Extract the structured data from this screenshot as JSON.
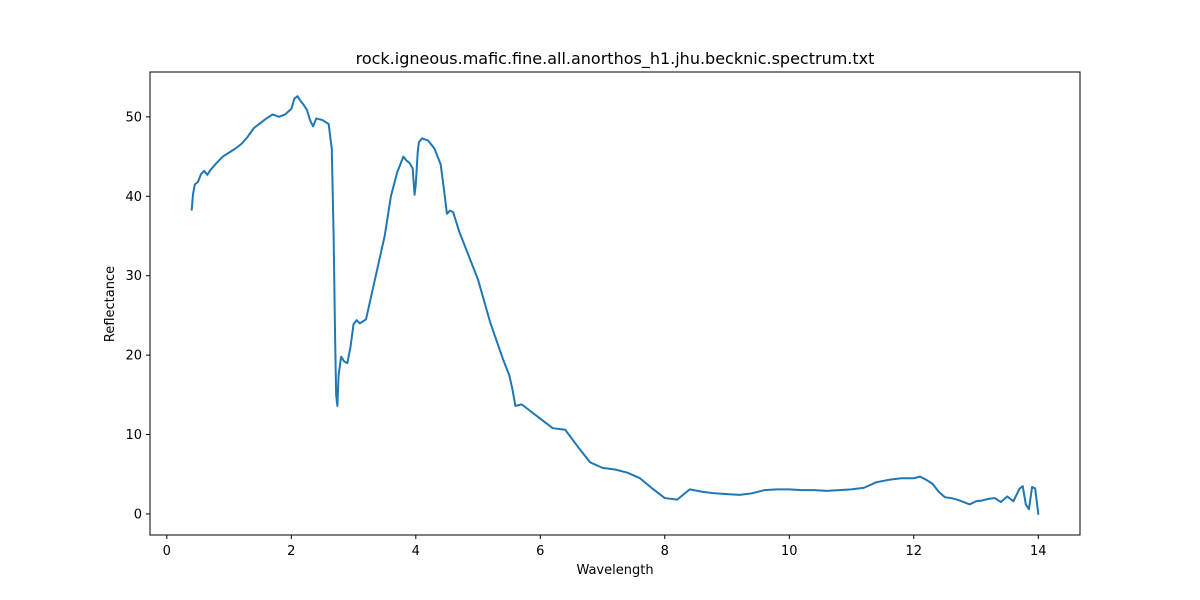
{
  "chart_data": {
    "type": "line",
    "title": "rock.igneous.mafic.fine.all.anorthos_h1.jhu.becknic.spectrum.txt",
    "xlabel": "Wavelength",
    "ylabel": "Reflectance",
    "xlim": [
      -0.27,
      14.67
    ],
    "ylim": [
      -2.65,
      55.65
    ],
    "xticks": [
      0,
      2,
      4,
      6,
      8,
      10,
      12,
      14
    ],
    "yticks": [
      0,
      10,
      20,
      30,
      40,
      50
    ],
    "grid": false,
    "legend": "none",
    "series": [
      {
        "color": "#1f77b4",
        "x": [
          0.4,
          0.42,
          0.45,
          0.5,
          0.55,
          0.6,
          0.65,
          0.7,
          0.8,
          0.9,
          1.0,
          1.1,
          1.2,
          1.3,
          1.4,
          1.5,
          1.6,
          1.7,
          1.8,
          1.9,
          2.0,
          2.05,
          2.1,
          2.15,
          2.2,
          2.25,
          2.3,
          2.35,
          2.4,
          2.5,
          2.6,
          2.65,
          2.68,
          2.7,
          2.72,
          2.74,
          2.76,
          2.8,
          2.85,
          2.9,
          2.95,
          3.0,
          3.05,
          3.1,
          3.2,
          3.3,
          3.4,
          3.5,
          3.6,
          3.7,
          3.8,
          3.85,
          3.9,
          3.95,
          3.98,
          4.0,
          4.03,
          4.05,
          4.1,
          4.2,
          4.3,
          4.4,
          4.45,
          4.5,
          4.55,
          4.6,
          4.7,
          4.8,
          5.0,
          5.2,
          5.4,
          5.5,
          5.55,
          5.6,
          5.7,
          5.8,
          6.0,
          6.2,
          6.4,
          6.6,
          6.8,
          7.0,
          7.2,
          7.4,
          7.6,
          7.8,
          8.0,
          8.2,
          8.4,
          8.6,
          8.8,
          9.0,
          9.2,
          9.4,
          9.6,
          9.8,
          10.0,
          10.2,
          10.4,
          10.6,
          10.8,
          11.0,
          11.2,
          11.4,
          11.6,
          11.8,
          12.0,
          12.1,
          12.2,
          12.3,
          12.4,
          12.5,
          12.6,
          12.7,
          12.8,
          12.9,
          13.0,
          13.1,
          13.2,
          13.3,
          13.4,
          13.5,
          13.6,
          13.7,
          13.75,
          13.8,
          13.85,
          13.9,
          13.95,
          14.0
        ],
        "values": [
          38.3,
          40.2,
          41.5,
          41.8,
          42.8,
          43.2,
          42.7,
          43.3,
          44.2,
          45.0,
          45.5,
          46.0,
          46.6,
          47.5,
          48.6,
          49.2,
          49.8,
          50.3,
          50.0,
          50.3,
          51.0,
          52.3,
          52.6,
          52.0,
          51.5,
          50.9,
          49.6,
          48.8,
          49.8,
          49.6,
          49.1,
          46.0,
          35.0,
          24.0,
          15.0,
          13.6,
          17.5,
          19.8,
          19.2,
          19.0,
          21.0,
          23.9,
          24.4,
          24.0,
          24.5,
          28.0,
          31.5,
          35.0,
          40.0,
          43.0,
          45.0,
          44.5,
          44.2,
          43.5,
          40.2,
          41.5,
          45.5,
          46.8,
          47.3,
          47.0,
          46.0,
          44.0,
          41.0,
          37.8,
          38.2,
          38.0,
          35.5,
          33.5,
          29.5,
          24.0,
          19.5,
          17.5,
          15.8,
          13.6,
          13.8,
          13.2,
          12.0,
          10.8,
          10.6,
          8.5,
          6.5,
          5.8,
          5.6,
          5.2,
          4.5,
          3.2,
          2.0,
          1.8,
          3.1,
          2.8,
          2.6,
          2.5,
          2.4,
          2.6,
          3.0,
          3.1,
          3.1,
          3.0,
          3.0,
          2.9,
          3.0,
          3.1,
          3.3,
          4.0,
          4.3,
          4.5,
          4.5,
          4.7,
          4.3,
          3.8,
          2.8,
          2.1,
          2.0,
          1.8,
          1.5,
          1.2,
          1.6,
          1.7,
          1.9,
          2.0,
          1.5,
          2.2,
          1.6,
          3.2,
          3.5,
          1.2,
          0.6,
          3.4,
          3.2,
          0.0
        ]
      }
    ]
  }
}
